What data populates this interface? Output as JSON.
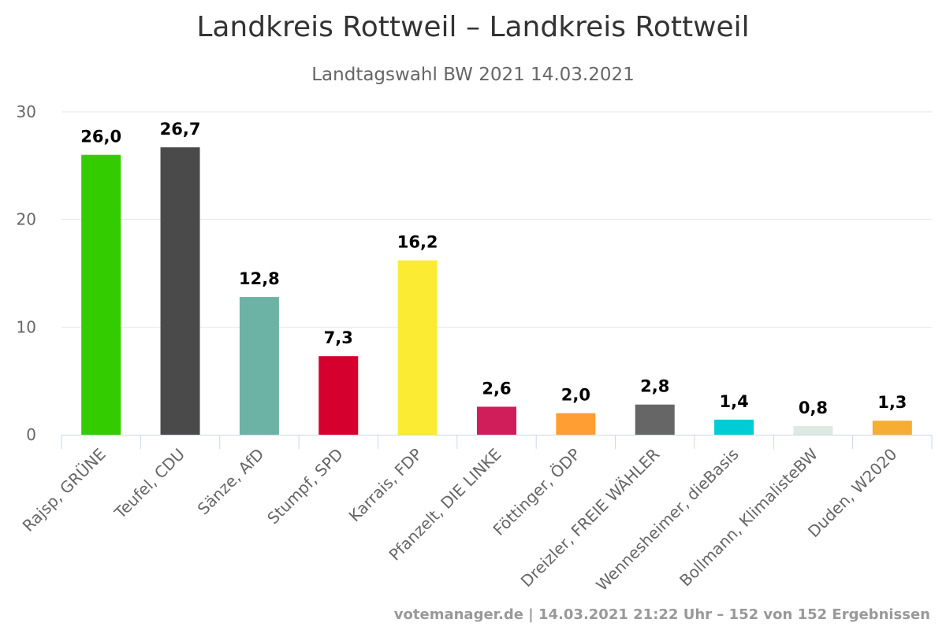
{
  "chart_data": {
    "type": "bar",
    "title": "Landkreis Rottweil – Landkreis Rottweil",
    "subtitle": "Landtagswahl BW 2021 14.03.2021",
    "xlabel": "",
    "ylabel": "",
    "ylim": [
      0,
      30
    ],
    "yticks": [
      0,
      10,
      20,
      30
    ],
    "grid": true,
    "categories": [
      "Rajsp, GRÜNE",
      "Teufel, CDU",
      "Sänze, AfD",
      "Stumpf, SPD",
      "Karrais, FDP",
      "Pfanzelt, DIE LINKE",
      "Föttinger, ÖDP",
      "Dreizler, FREIE WÄHLER",
      "Wennesheimer, dieBasis",
      "Bollmann, KlimalisteBW",
      "Duden, W2020"
    ],
    "values": [
      26.0,
      26.7,
      12.8,
      7.3,
      16.2,
      2.6,
      2.0,
      2.8,
      1.4,
      0.8,
      1.3
    ],
    "value_labels": [
      "26,0",
      "26,7",
      "12,8",
      "7,3",
      "16,2",
      "2,6",
      "2,0",
      "2,8",
      "1,4",
      "0,8",
      "1,3"
    ],
    "colors": [
      "#33cc00",
      "#4a4a4a",
      "#6db3a5",
      "#d5002d",
      "#fbec33",
      "#cf1e5a",
      "#ff9e33",
      "#666666",
      "#00ccd6",
      "#dde9e3",
      "#f5ad34"
    ]
  },
  "credits": "votemanager.de | 14.03.2021 21:22 Uhr – 152 von 152 Ergebnissen"
}
